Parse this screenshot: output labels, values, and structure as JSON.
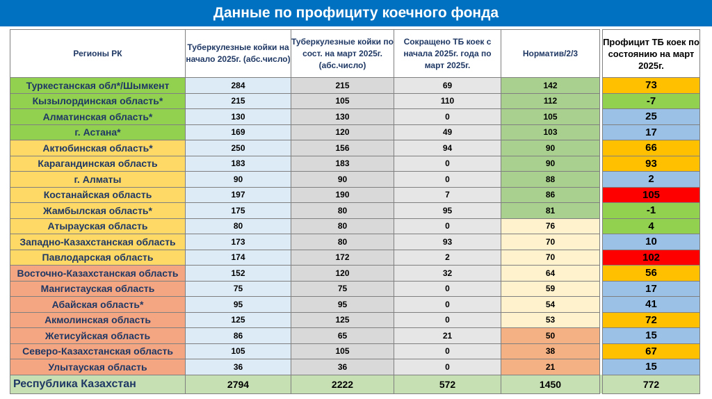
{
  "title": "Данные по профициту коечного фонда",
  "table": {
    "headers": [
      "Регионы РК",
      "Туберкулезные койки на начало 2025г. (абс.число)",
      "Туберкулезные койки по сост. на март 2025г. (абс.число)",
      "Сокращено ТБ коек с начала 2025г. года по март 2025г.",
      "Норматив/2/3",
      "Профицит ТБ коек по состоянию на март 2025г."
    ],
    "rows": [
      [
        "Туркестанская обл*/Шымкент",
        284,
        215,
        69,
        142,
        73
      ],
      [
        "Кызылординская область*",
        215,
        105,
        110,
        112,
        -7
      ],
      [
        "Алматинская область*",
        130,
        130,
        0,
        105,
        25
      ],
      [
        "г. Астана*",
        169,
        120,
        49,
        103,
        17
      ],
      [
        "Актюбинская область*",
        250,
        156,
        94,
        90,
        66
      ],
      [
        "Карагандинская область",
        183,
        183,
        0,
        90,
        93
      ],
      [
        "г. Алматы",
        90,
        90,
        0,
        88,
        2
      ],
      [
        "Костанайская область",
        197,
        190,
        7,
        86,
        105
      ],
      [
        "Жамбылская область*",
        175,
        80,
        95,
        81,
        -1
      ],
      [
        "Атырауская область",
        80,
        80,
        0,
        76,
        4
      ],
      [
        "Западно-Казахстанская область",
        173,
        80,
        93,
        70,
        10
      ],
      [
        "Павлодарская область",
        174,
        172,
        2,
        70,
        102
      ],
      [
        "Восточно-Казахстанская область",
        152,
        120,
        32,
        64,
        56
      ],
      [
        "Мангистауская область",
        75,
        75,
        0,
        59,
        17
      ],
      [
        "Абайская область*",
        95,
        95,
        0,
        54,
        41
      ],
      [
        "Акмолинская область",
        125,
        125,
        0,
        53,
        72
      ],
      [
        "Жетисуйская область",
        86,
        65,
        21,
        50,
        15
      ],
      [
        "Северо-Казахстанская область",
        105,
        105,
        0,
        38,
        67
      ],
      [
        "Улытауская область",
        36,
        36,
        0,
        21,
        15
      ]
    ],
    "total": [
      "Республика Казахстан",
      2794,
      2222,
      572,
      1450,
      772
    ]
  }
}
